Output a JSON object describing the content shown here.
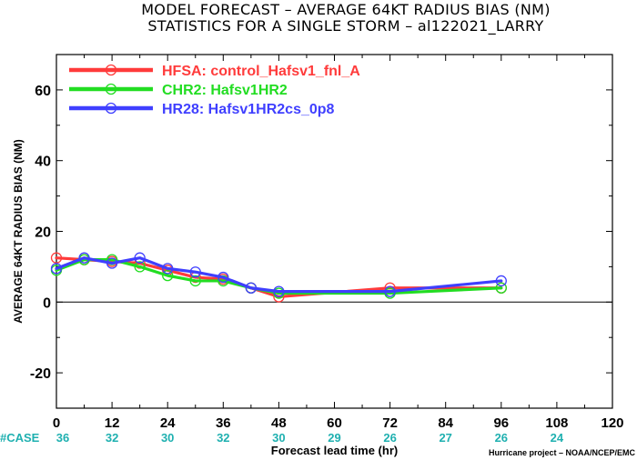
{
  "chart_data": {
    "type": "line",
    "title": "MODEL FORECAST – AVERAGE 64KT RADIUS BIAS (NM)",
    "subtitle": "STATISTICS FOR A SINGLE STORM – al122021_LARRY",
    "xlabel": "Forecast lead time (hr)",
    "ylabel": "AVERAGE 64KT RADIUS BIAS (NM)",
    "xlim": [
      0,
      120
    ],
    "ylim": [
      -30,
      70
    ],
    "x_ticks": [
      0,
      12,
      24,
      36,
      48,
      60,
      72,
      84,
      96,
      108,
      120
    ],
    "y_ticks": [
      -20,
      0,
      20,
      40,
      60
    ],
    "grid": false,
    "zero_line": true,
    "legend_position": "top-left",
    "case_label": "#CASE",
    "case_counts": [
      "36",
      "32",
      "30",
      "32",
      "30",
      "29",
      "26",
      "27",
      "26",
      "24"
    ],
    "credit": "Hurricane project – NOAA/NCEP/EMC",
    "series": [
      {
        "name": "HFSA: control_Hafsv1_fnl_A",
        "color": "#ff3b3b",
        "x": [
          0,
          6,
          12,
          18,
          24,
          30,
          36,
          42,
          48,
          72,
          96
        ],
        "values": [
          12.5,
          12.0,
          11.5,
          11.0,
          9.0,
          7.0,
          6.5,
          4.0,
          1.5,
          4.0,
          4.0
        ]
      },
      {
        "name": "CHR2: Hafsv1HR2",
        "color": "#22dd22",
        "x": [
          0,
          6,
          12,
          18,
          24,
          30,
          36,
          42,
          48,
          72,
          96
        ],
        "values": [
          9.0,
          12.0,
          12.0,
          10.0,
          7.5,
          6.0,
          6.0,
          4.0,
          2.5,
          2.5,
          4.0
        ]
      },
      {
        "name": "HR28: Hafsv1HR2cs_0p8",
        "color": "#3f3fff",
        "x": [
          0,
          6,
          12,
          18,
          24,
          30,
          36,
          42,
          48,
          72,
          96
        ],
        "values": [
          9.5,
          12.5,
          11.0,
          12.5,
          9.5,
          8.5,
          7.0,
          4.0,
          3.0,
          3.0,
          6.0
        ]
      }
    ]
  }
}
